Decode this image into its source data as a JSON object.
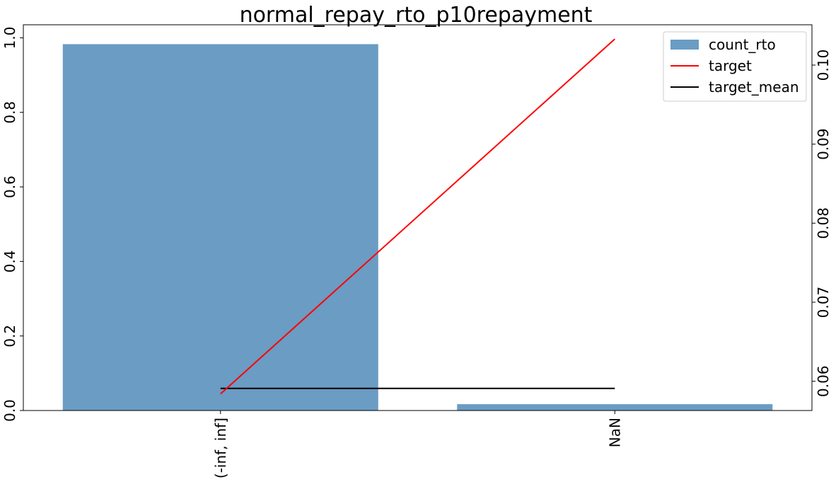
{
  "chart_data": {
    "type": "bar",
    "title": "normal_repay_rto_p10repayment",
    "categories": [
      "(-inf, inf]",
      "NaN"
    ],
    "series": [
      {
        "name": "count_rto",
        "kind": "bar",
        "axis": "left",
        "values": [
          0.983,
          0.017
        ]
      },
      {
        "name": "target",
        "kind": "line",
        "axis": "right",
        "values": [
          0.0584,
          0.1033
        ]
      },
      {
        "name": "target_mean",
        "kind": "line",
        "axis": "right",
        "values": [
          0.0591,
          0.0591
        ]
      }
    ],
    "left_axis": {
      "ylim": [
        0.0,
        1.035
      ],
      "ticks": [
        "0.0",
        "0.2",
        "0.4",
        "0.6",
        "0.8",
        "1.0"
      ]
    },
    "right_axis": {
      "ylim": [
        0.0563,
        0.1051
      ],
      "ticks": [
        "0.06",
        "0.07",
        "0.08",
        "0.09",
        "0.10"
      ]
    },
    "legend": {
      "position": "top-right"
    },
    "grid": false
  },
  "colors": {
    "bar": "#6a9cc4",
    "target": "#ff0000",
    "target_mean": "#000000"
  }
}
